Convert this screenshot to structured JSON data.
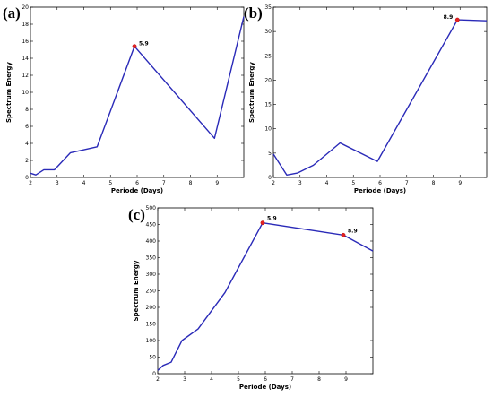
{
  "colors": {
    "line": "#2a2ab8",
    "marker": "#e32222"
  },
  "chart_data": [
    {
      "type": "line",
      "panel_label": "(a)",
      "xlabel": "Periode (Days)",
      "ylabel": "Spectrum Energy",
      "xlim": [
        2,
        10
      ],
      "ylim": [
        0,
        20
      ],
      "xticks": [
        2,
        3,
        4,
        5,
        6,
        7,
        8,
        9
      ],
      "yticks": [
        0,
        2,
        4,
        6,
        8,
        10,
        12,
        14,
        16,
        18,
        20
      ],
      "grid": false,
      "series": [
        {
          "x": [
            2,
            2.2,
            2.5,
            2.9,
            3.5,
            4.5,
            5.9,
            8.9,
            10
          ],
          "y": [
            0.5,
            0.3,
            0.9,
            0.9,
            2.9,
            3.6,
            15.4,
            4.6,
            18.9
          ]
        }
      ],
      "peaks": [
        {
          "x": 5.9,
          "y": 15.4,
          "label": "5.9"
        }
      ]
    },
    {
      "type": "line",
      "panel_label": "(b)",
      "xlabel": "Periode (Days)",
      "ylabel": "Spectrum Energy",
      "xlim": [
        2,
        10
      ],
      "ylim": [
        0,
        35
      ],
      "xticks": [
        2,
        3,
        4,
        5,
        6,
        7,
        8,
        9
      ],
      "yticks": [
        0,
        5,
        10,
        15,
        20,
        25,
        30,
        35
      ],
      "grid": false,
      "series": [
        {
          "x": [
            2,
            2.5,
            2.9,
            3.5,
            4.5,
            5.9,
            8.9,
            10
          ],
          "y": [
            4.8,
            0.5,
            0.9,
            2.5,
            7.1,
            3.3,
            32.4,
            32.2
          ]
        }
      ],
      "peaks": [
        {
          "x": 8.9,
          "y": 32.4,
          "label": "8.9"
        }
      ]
    },
    {
      "type": "line",
      "panel_label": "(c)",
      "xlabel": "Periode (Days)",
      "ylabel": "Spectrum Energy",
      "xlim": [
        2,
        10
      ],
      "ylim": [
        0,
        500
      ],
      "xticks": [
        2,
        3,
        4,
        5,
        6,
        7,
        8,
        9
      ],
      "yticks": [
        0,
        50,
        100,
        150,
        200,
        250,
        300,
        350,
        400,
        450,
        500
      ],
      "grid": false,
      "series": [
        {
          "x": [
            2,
            2.2,
            2.5,
            2.9,
            3.5,
            4.5,
            5.9,
            8.9,
            10
          ],
          "y": [
            10,
            25,
            35,
            100,
            135,
            245,
            455,
            418,
            370
          ]
        }
      ],
      "peaks": [
        {
          "x": 5.9,
          "y": 455,
          "label": "5.9"
        },
        {
          "x": 8.9,
          "y": 418,
          "label": "8.9"
        }
      ]
    }
  ]
}
